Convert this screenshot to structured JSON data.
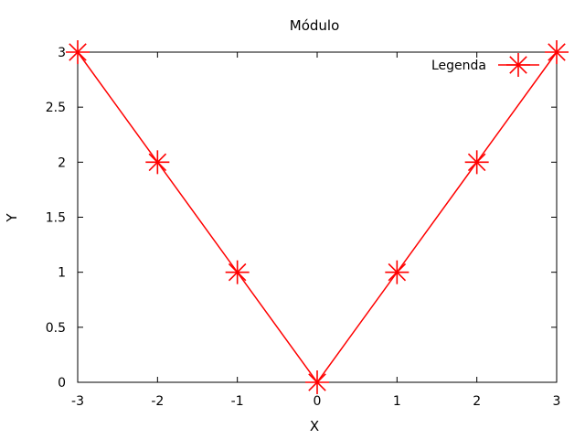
{
  "chart_data": {
    "type": "line",
    "title": "Módulo",
    "xlabel": "X",
    "ylabel": "Y",
    "xlim": [
      -3,
      3
    ],
    "ylim": [
      0,
      3
    ],
    "xticks": [
      "-3",
      "-2",
      "-1",
      "0",
      "1",
      "2",
      "3"
    ],
    "yticks": [
      "0",
      "0.5",
      "1",
      "1.5",
      "2",
      "2.5",
      "3"
    ],
    "grid": false,
    "legend_position": "top-right",
    "series": [
      {
        "name": "Legenda",
        "color": "#ff0000",
        "marker": "asterisk",
        "x": [
          -3,
          -2,
          -1,
          0,
          1,
          2,
          3
        ],
        "y": [
          3,
          2,
          1,
          0,
          1,
          2,
          3
        ]
      }
    ]
  }
}
